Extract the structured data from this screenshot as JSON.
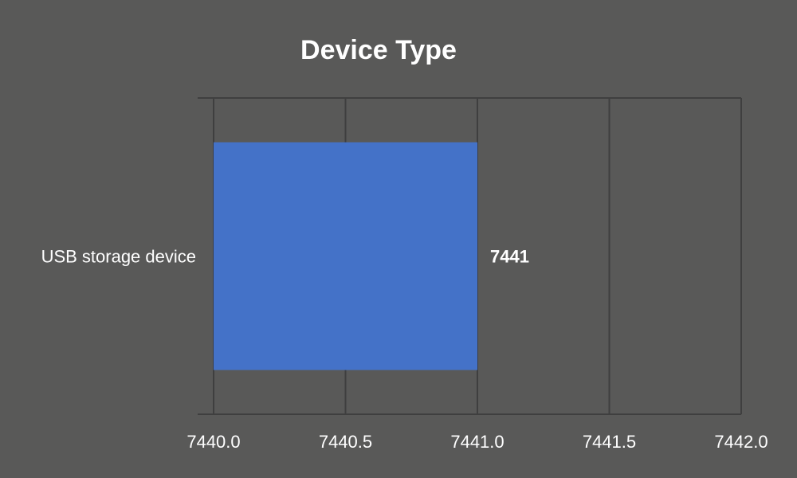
{
  "chart_data": {
    "type": "bar",
    "orientation": "horizontal",
    "title": "Device Type",
    "categories": [
      "USB storage device"
    ],
    "values": [
      7441
    ],
    "data_labels": [
      "7441"
    ],
    "xlim": [
      7440.0,
      7442.0
    ],
    "x_ticks": [
      "7440.0",
      "7440.5",
      "7441.0",
      "7441.5",
      "7442.0"
    ],
    "grid": true,
    "legend": "none",
    "colors": {
      "background": "#595958",
      "bar": "#4472c8",
      "grid": "#3f3f3f",
      "text": "#ffffff"
    }
  }
}
